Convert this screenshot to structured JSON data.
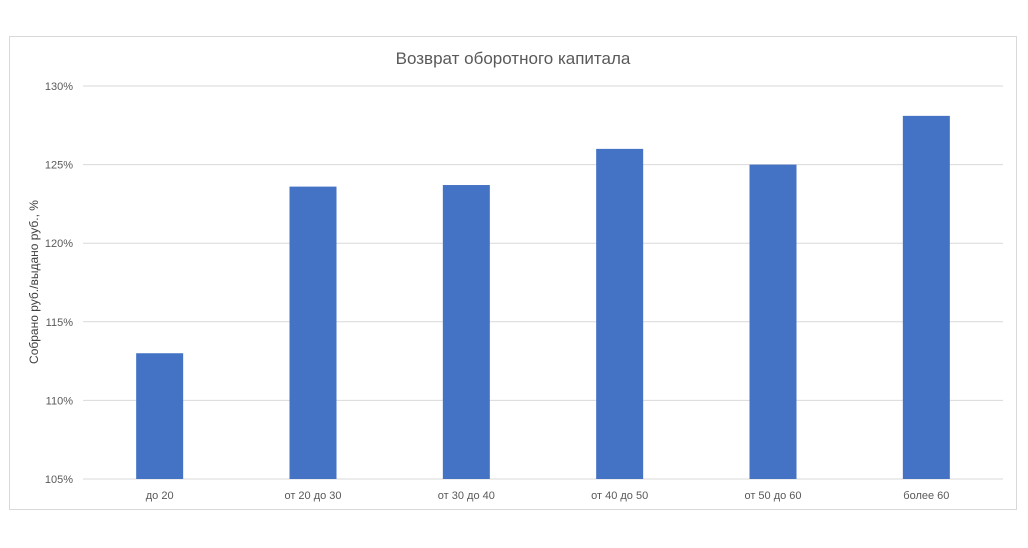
{
  "chart_data": {
    "type": "bar",
    "title": "Возврат оборотного капитала",
    "xlabel": "",
    "ylabel": "Собрано руб./выдано руб., %",
    "categories": [
      "до 20",
      "от 20 до 30",
      "от 30 до 40",
      "от 40 до 50",
      "от 50 до 60",
      "более 60"
    ],
    "values": [
      113.0,
      123.6,
      123.7,
      126.0,
      125.0,
      128.1
    ],
    "ylim": [
      105,
      130
    ],
    "yticks": [
      105,
      110,
      115,
      120,
      125,
      130
    ],
    "ytick_labels": [
      "105%",
      "110%",
      "115%",
      "120%",
      "125%",
      "130%"
    ],
    "grid": true,
    "bar_color": "#4472C4",
    "grid_color": "#d9d9d9",
    "legend": "none"
  }
}
